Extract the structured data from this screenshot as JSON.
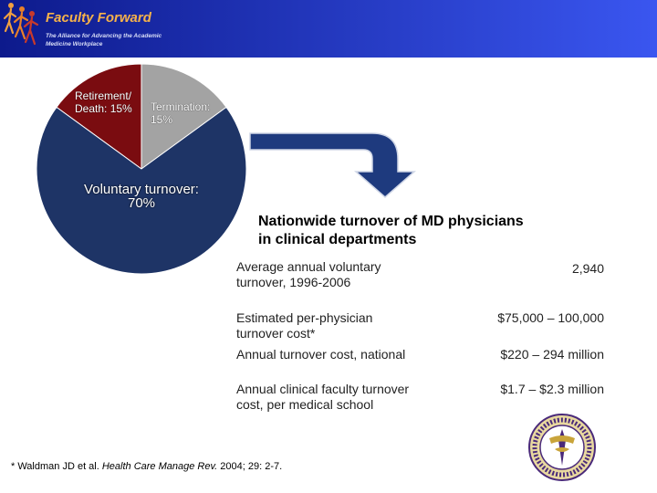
{
  "header": {
    "logo_title": "Faculty Forward",
    "logo_subtitle": "The Alliance for Advancing the Academic Medicine Workplace",
    "colors": {
      "bar_start": "#0d1a8c",
      "bar_end": "#3a56f0",
      "logo_accent": "#f6b24a"
    }
  },
  "pie_labels": {
    "retirement_line1": "Retirement/",
    "retirement_line2": "Death: 15%",
    "termination_line1": "Termination:",
    "termination_line2": "15%",
    "voluntary_line1": "Voluntary turnover:",
    "voluntary_line2": "70%"
  },
  "chart_data": {
    "type": "pie",
    "slices": [
      {
        "label": "Retirement/ Death",
        "value": 15,
        "color": "#7a0c10"
      },
      {
        "label": "Termination",
        "value": 15,
        "color": "#a3a3a3"
      },
      {
        "label": "Voluntary turnover",
        "value": 70,
        "color": "#1e3466"
      }
    ]
  },
  "arrow": {
    "color": "#1e3a7e",
    "icon": "curved-arrow-icon"
  },
  "heading": {
    "line1": "Nationwide turnover of MD physicians",
    "line2": "in clinical departments"
  },
  "table": [
    {
      "label_line1": "Average annual voluntary",
      "label_line2": "turnover, 1996-2006",
      "value": "2,940"
    },
    {
      "label_line1": "Estimated per-physician",
      "label_line2": "turnover cost*",
      "value": "$75,000 – 100,000"
    },
    {
      "label_line1": "Annual turnover cost, national",
      "label_line2": "",
      "value": "$220 – 294 million"
    },
    {
      "label_line1": "Annual clinical faculty turnover",
      "label_line2": "cost, per medical school",
      "value": "$1.7 – $2.3 million"
    }
  ],
  "footnote": {
    "prefix": "* Waldman JD et al. ",
    "journal": "Health Care Manage Rev.",
    "suffix": " 2004; 29: 2-7."
  },
  "seal": {
    "icon": "lsu-health-seal-icon",
    "text_top": "LOUISIANA STATE UNIVERSITY",
    "text_bottom": "HEALTH SCIENCES CENTER"
  }
}
